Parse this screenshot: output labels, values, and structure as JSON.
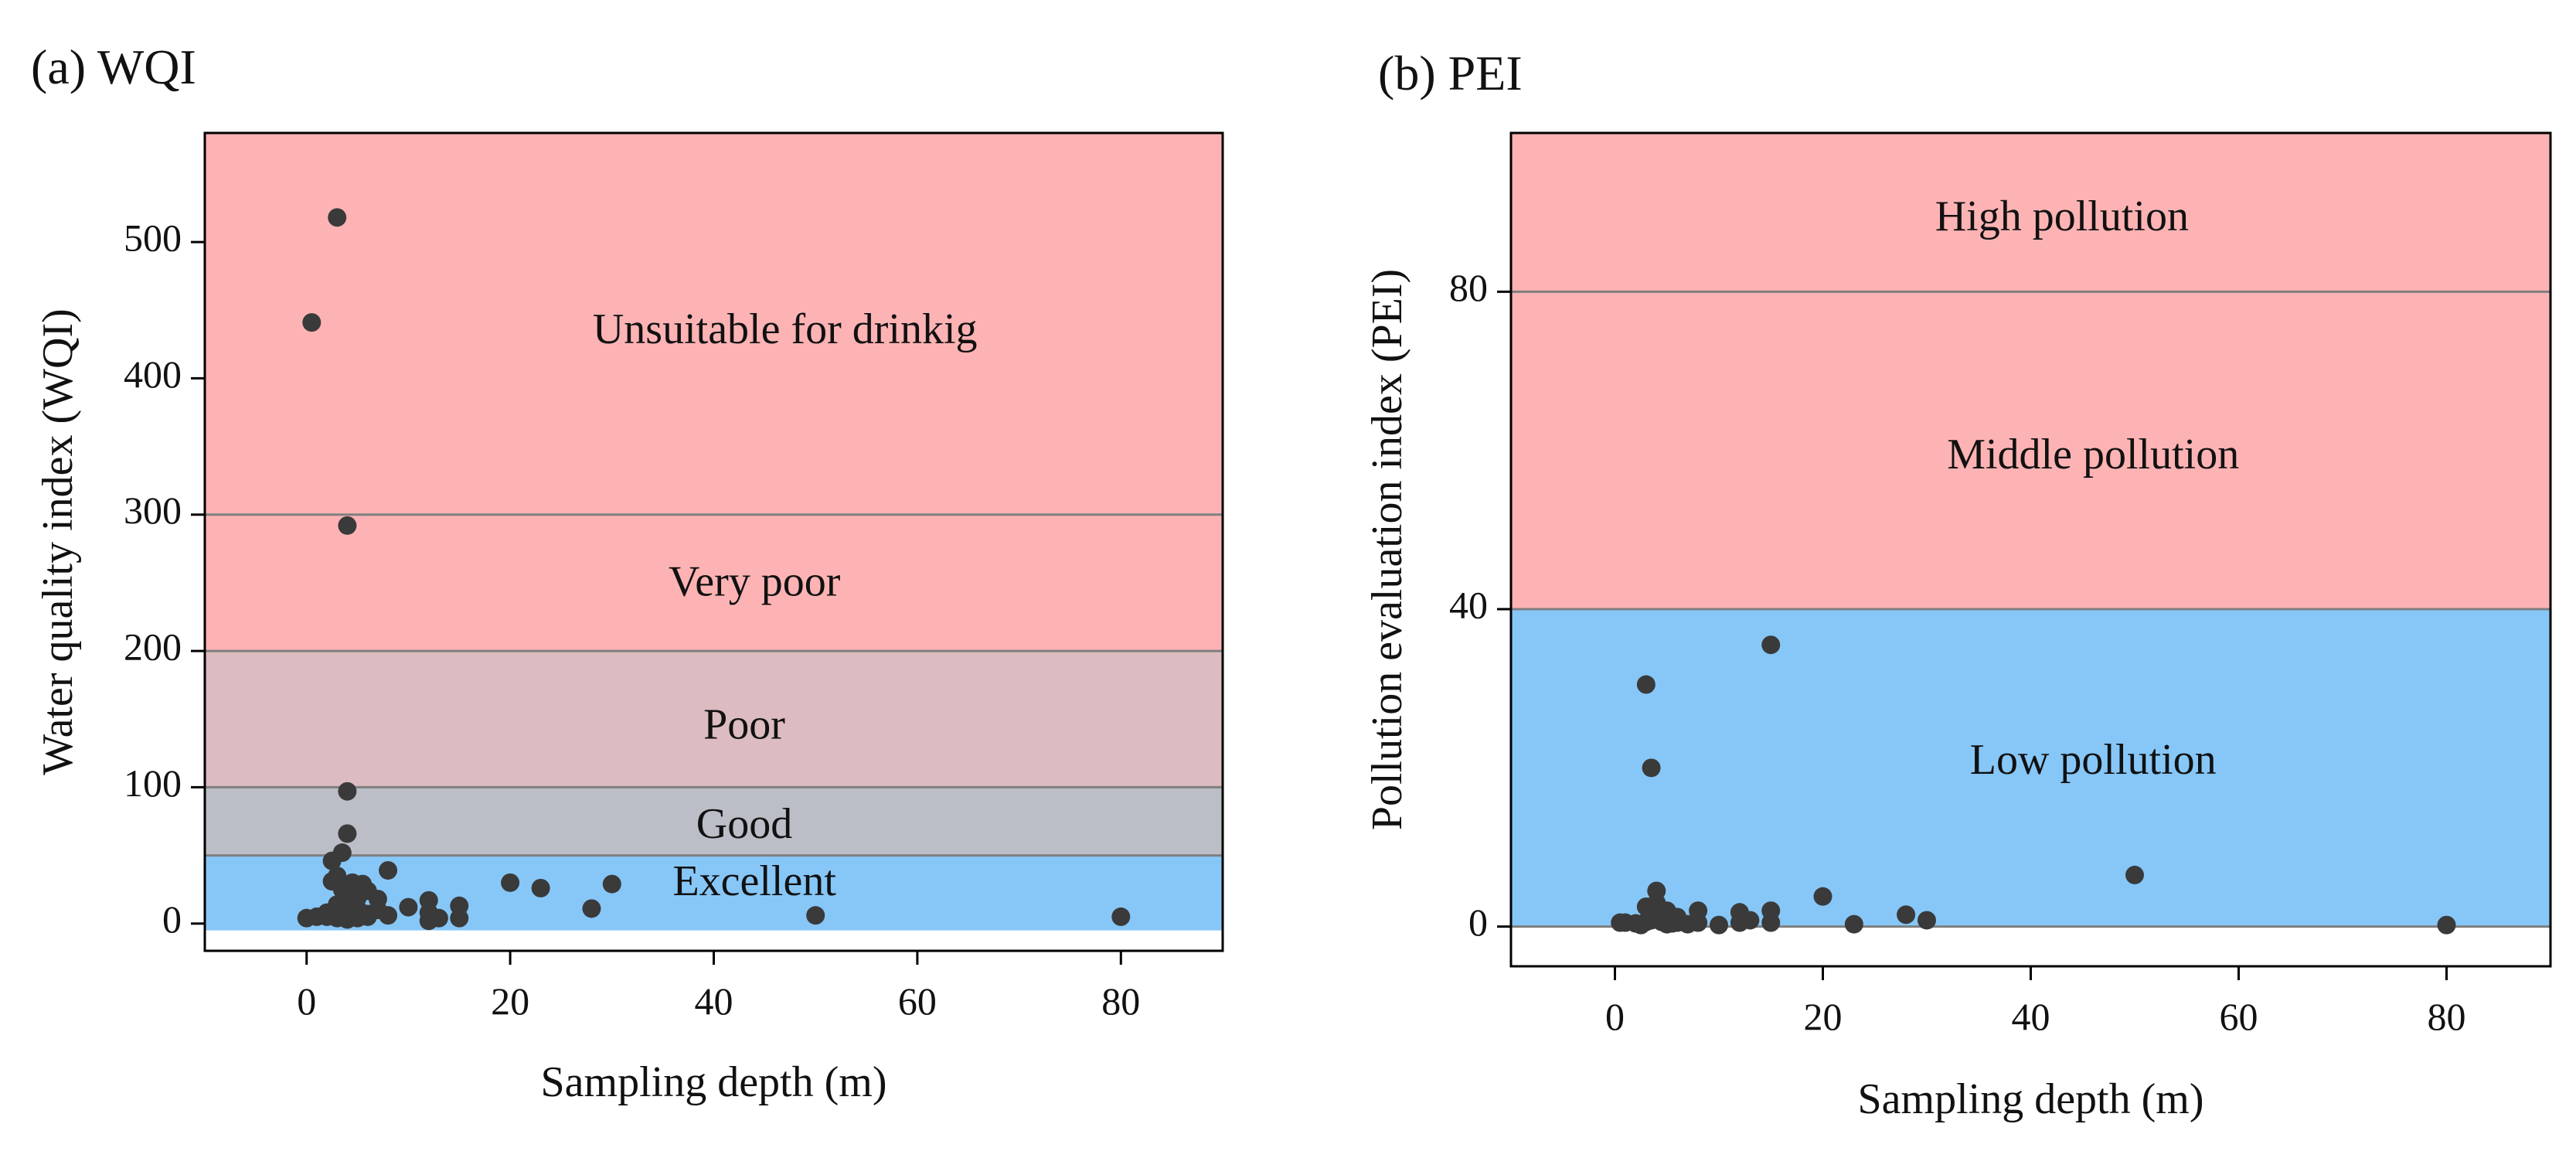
{
  "chart_data": [
    {
      "type": "scatter",
      "title": "(a) WQI",
      "xlabel": "Sampling depth (m)",
      "ylabel": "Water quality index (WQI)",
      "xlim": [
        -10,
        90
      ],
      "ylim": [
        -20,
        580
      ],
      "xticks": [
        0,
        20,
        40,
        60,
        80
      ],
      "yticks": [
        0,
        100,
        200,
        300,
        400,
        500
      ],
      "grid": false,
      "bands": [
        {
          "name": "Excellent",
          "from": -5,
          "to": 50,
          "color": "#87c7f8"
        },
        {
          "name": "Good",
          "from": 50,
          "to": 100,
          "color": "#bbbec6"
        },
        {
          "name": "Poor",
          "from": 100,
          "to": 200,
          "color": "#dcbcc0"
        },
        {
          "name": "Very poor",
          "from": 200,
          "to": 300,
          "color": "#fdb3b4"
        },
        {
          "name": "Unsuitable for drinkig",
          "from": 300,
          "to": 580,
          "color": "#fdb3b4"
        }
      ],
      "band_lines": [
        50,
        100,
        200,
        300
      ],
      "labels": [
        {
          "text": "Unsuitable for drinkig",
          "x": 47,
          "y": 433
        },
        {
          "text": "Very poor",
          "x": 44,
          "y": 248
        },
        {
          "text": "Poor",
          "x": 43,
          "y": 143
        },
        {
          "text": "Good",
          "x": 43,
          "y": 70
        },
        {
          "text": "Excellent",
          "x": 44,
          "y": 28
        }
      ],
      "marker_color": "#3a3a3a",
      "points": [
        [
          3,
          518
        ],
        [
          0.5,
          441
        ],
        [
          4,
          292
        ],
        [
          4,
          97
        ],
        [
          4,
          66
        ],
        [
          2.5,
          46
        ],
        [
          3.5,
          52
        ],
        [
          8,
          39
        ],
        [
          3,
          35
        ],
        [
          4.5,
          30
        ],
        [
          5.5,
          29
        ],
        [
          2.5,
          31
        ],
        [
          3.5,
          25
        ],
        [
          6,
          24
        ],
        [
          4,
          20
        ],
        [
          7,
          18
        ],
        [
          5,
          19
        ],
        [
          3,
          14
        ],
        [
          4.5,
          13
        ],
        [
          5,
          11
        ],
        [
          2,
          8
        ],
        [
          3,
          9
        ],
        [
          4,
          6
        ],
        [
          5,
          5
        ],
        [
          6,
          7
        ],
        [
          7,
          10
        ],
        [
          8,
          6
        ],
        [
          1,
          5
        ],
        [
          2,
          5
        ],
        [
          3,
          4
        ],
        [
          4,
          3
        ],
        [
          5,
          4
        ],
        [
          0,
          4
        ],
        [
          10,
          12
        ],
        [
          12,
          17
        ],
        [
          12,
          8
        ],
        [
          13,
          4
        ],
        [
          15,
          13
        ],
        [
          15,
          4
        ],
        [
          12,
          2
        ],
        [
          20,
          30
        ],
        [
          23,
          26
        ],
        [
          28,
          11
        ],
        [
          30,
          29
        ],
        [
          50,
          6
        ],
        [
          80,
          5
        ],
        [
          6,
          5
        ]
      ]
    },
    {
      "type": "scatter",
      "title": "(b) PEI",
      "xlabel": "Sampling depth (m)",
      "ylabel": "Pollution evaluation index (PEI)",
      "xlim": [
        -10,
        90
      ],
      "ylim": [
        -5,
        100
      ],
      "xticks": [
        0,
        20,
        40,
        60,
        80
      ],
      "yticks": [
        0,
        40,
        80
      ],
      "grid": false,
      "bands": [
        {
          "name": "Low pollution",
          "from": 0,
          "to": 40,
          "color": "#87c7f8"
        },
        {
          "name": "Middle pollution",
          "from": 40,
          "to": 80,
          "color": "#fdb3b4"
        },
        {
          "name": "High pollution",
          "from": 80,
          "to": 100,
          "color": "#fdb3b4"
        }
      ],
      "band_lines": [
        0,
        40,
        80
      ],
      "labels": [
        {
          "text": "High pollution",
          "x": 43,
          "y": 89
        },
        {
          "text": "Middle pollution",
          "x": 46,
          "y": 59
        },
        {
          "text": "Low pollution",
          "x": 46,
          "y": 20.5
        }
      ],
      "marker_color": "#3a3a3a",
      "points": [
        [
          15,
          35.5
        ],
        [
          3,
          30.5
        ],
        [
          3.5,
          20
        ],
        [
          50,
          6.5
        ],
        [
          20,
          3.8
        ],
        [
          4,
          4.5
        ],
        [
          3,
          2.5
        ],
        [
          5,
          2
        ],
        [
          4,
          1.5
        ],
        [
          6,
          1.2
        ],
        [
          8,
          2
        ],
        [
          12,
          1.8
        ],
        [
          15,
          2
        ],
        [
          28,
          1.5
        ],
        [
          30,
          0.8
        ],
        [
          1,
          0.5
        ],
        [
          2,
          0.4
        ],
        [
          3,
          0.6
        ],
        [
          3.5,
          0.8
        ],
        [
          4.5,
          0.6
        ],
        [
          5,
          0.3
        ],
        [
          6,
          0.5
        ],
        [
          7,
          0.3
        ],
        [
          8,
          0.5
        ],
        [
          10,
          0.2
        ],
        [
          12,
          0.5
        ],
        [
          13,
          0.8
        ],
        [
          15,
          0.5
        ],
        [
          23,
          0.3
        ],
        [
          80,
          0.2
        ],
        [
          0.5,
          0.5
        ],
        [
          2.5,
          0.2
        ],
        [
          5.5,
          0.4
        ],
        [
          4,
          3
        ]
      ]
    }
  ]
}
